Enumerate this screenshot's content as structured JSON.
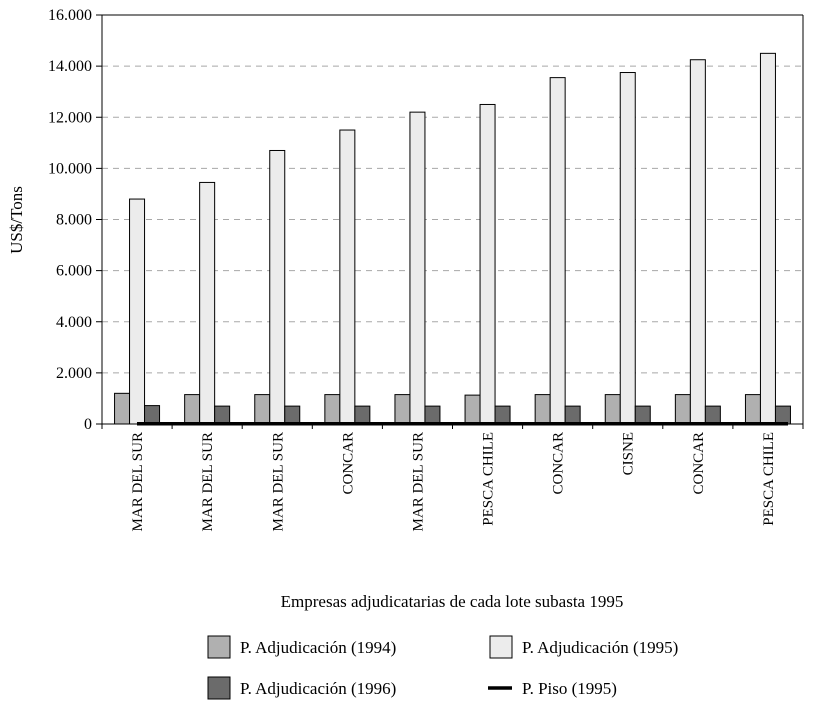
{
  "chart_data": {
    "type": "bar",
    "ylabel": "US$/Tons",
    "xlabel": "Empresas adjudicatarias de cada lote subasta 1995",
    "ylim": [
      0,
      16000
    ],
    "yticks": [
      0,
      2000,
      4000,
      6000,
      8000,
      10000,
      12000,
      14000,
      16000
    ],
    "ytick_labels": [
      "0",
      "2.000",
      "4.000",
      "6.000",
      "8.000",
      "10.000",
      "12.000",
      "14.000",
      "16.000"
    ],
    "grid": "horizontal-dashed",
    "legend_placement": "bottom",
    "categories": [
      "MAR DEL SUR",
      "MAR DEL SUR",
      "MAR DEL SUR",
      "CONCAR",
      "MAR DEL SUR",
      "PESCA CHILE",
      "CONCAR",
      "CISNE",
      "CONCAR",
      "PESCA CHILE"
    ],
    "series": [
      {
        "name": "P. Adjudicación (1994)",
        "kind": "bar",
        "color": "#b0b0b0",
        "values": [
          1200,
          1150,
          1150,
          1150,
          1150,
          1130,
          1150,
          1150,
          1150,
          1150
        ]
      },
      {
        "name": "P. Adjudicación (1995)",
        "kind": "bar",
        "color": "#ececec",
        "values": [
          8800,
          9450,
          10700,
          11500,
          12200,
          12500,
          13550,
          13750,
          14250,
          14500
        ]
      },
      {
        "name": "P. Adjudicación (1996)",
        "kind": "bar",
        "color": "#6b6b6b",
        "values": [
          720,
          700,
          700,
          700,
          700,
          700,
          700,
          700,
          700,
          700
        ]
      },
      {
        "name": "P. Piso (1995)",
        "kind": "line",
        "color": "#000000",
        "values": [
          50,
          50,
          50,
          50,
          50,
          50,
          50,
          50,
          50,
          50
        ]
      }
    ]
  }
}
